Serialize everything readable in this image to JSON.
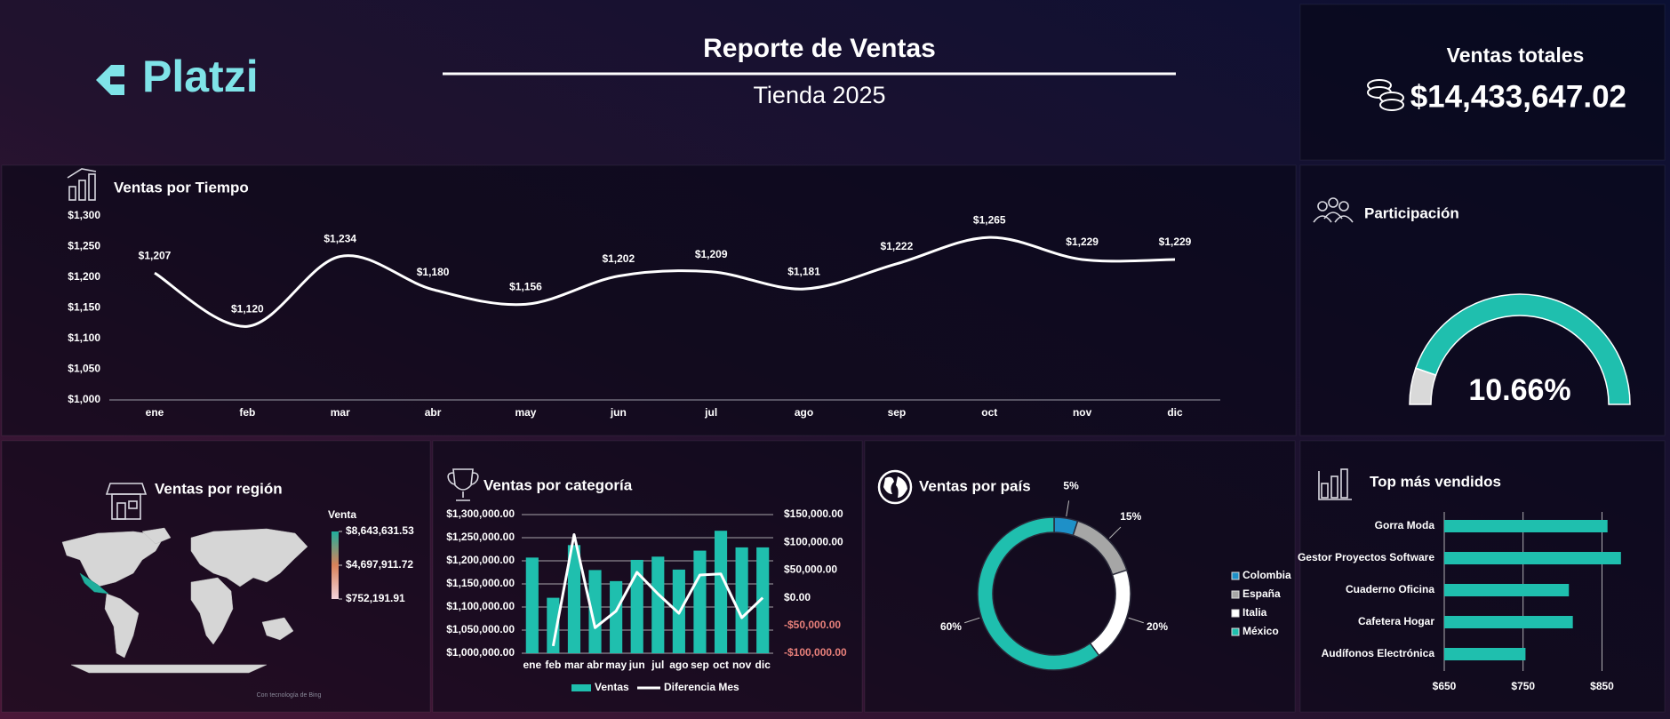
{
  "header": {
    "logo": "Platzi",
    "title": "Reporte de Ventas",
    "subtitle": "Tienda 2025"
  },
  "kpi": {
    "label": "Ventas totales",
    "value": "$14,433,647.02"
  },
  "chart_data": [
    {
      "type": "line",
      "title": "Ventas por Tiempo",
      "categories": [
        "ene",
        "feb",
        "mar",
        "abr",
        "may",
        "jun",
        "jul",
        "ago",
        "sep",
        "oct",
        "nov",
        "dic"
      ],
      "values": [
        1207,
        1120,
        1234,
        1180,
        1156,
        1202,
        1209,
        1181,
        1222,
        1265,
        1229,
        1229
      ],
      "value_labels": [
        "$1,207",
        "$1,120",
        "$1,234",
        "$1,180",
        "$1,156",
        "$1,202",
        "$1,209",
        "$1,181",
        "$1,222",
        "$1,265",
        "$1,229",
        "$1,229"
      ],
      "color": "#ffffff",
      "ylim": [
        1000,
        1300
      ],
      "yticks": [
        {
          "value": 1000,
          "label": "$1,000"
        },
        {
          "value": 1050,
          "label": "$1,050"
        },
        {
          "value": 1100,
          "label": "$1,100"
        },
        {
          "value": 1150,
          "label": "$1,150"
        },
        {
          "value": 1200,
          "label": "$1,200"
        },
        {
          "value": 1250,
          "label": "$1,250"
        },
        {
          "value": 1300,
          "label": "$1,300"
        }
      ]
    },
    {
      "type": "gauge",
      "title": "Participación",
      "values": [
        10.66
      ],
      "value_labels": [
        "10.66%"
      ],
      "ylim": [
        0,
        100
      ],
      "color": "#d9d9d9",
      "track_color": "#1fbfae"
    },
    {
      "type": "map",
      "title": "Ventas por región",
      "legend_title": "Venta",
      "colorbar": [
        {
          "value": 8643631.53,
          "label": "$8,643,631.53"
        },
        {
          "value": 4697911.72,
          "label": "$4,697,911.72"
        },
        {
          "value": 752191.91,
          "label": "$752,191.91"
        }
      ],
      "colors": [
        "#1fae9c",
        "#d9825a",
        "#f2d4dc"
      ],
      "footnote": "Con tecnología de Bing"
    },
    {
      "type": "combo",
      "title": "Ventas por categoría",
      "categories": [
        "ene",
        "feb",
        "mar",
        "abr",
        "may",
        "jun",
        "jul",
        "ago",
        "sep",
        "oct",
        "nov",
        "dic"
      ],
      "series": [
        {
          "name": "Ventas",
          "type": "bar",
          "color": "#1fbfae",
          "values": [
            1207000,
            1120000,
            1234000,
            1180000,
            1156000,
            1202000,
            1209000,
            1181000,
            1222000,
            1265000,
            1229000,
            1229000
          ]
        },
        {
          "name": "Diferencia Mes",
          "type": "line",
          "axis": "y2",
          "color": "#ffffff",
          "values": [
            null,
            -87000,
            114000,
            -54000,
            -24000,
            46000,
            7000,
            -28000,
            41000,
            43000,
            -36000,
            0
          ]
        }
      ],
      "ylim": [
        1000000,
        1300000
      ],
      "yticks": [
        {
          "value": 1000000,
          "label": "$1,000,000.00"
        },
        {
          "value": 1050000,
          "label": "$1,050,000.00"
        },
        {
          "value": 1100000,
          "label": "$1,100,000.00"
        },
        {
          "value": 1150000,
          "label": "$1,150,000.00"
        },
        {
          "value": 1200000,
          "label": "$1,200,000.00"
        },
        {
          "value": 1250000,
          "label": "$1,250,000.00"
        },
        {
          "value": 1300000,
          "label": "$1,300,000.00"
        }
      ],
      "y2lim": [
        -100000,
        150000
      ],
      "y2ticks": [
        {
          "value": -100000,
          "label": "-$100,000.00"
        },
        {
          "value": -50000,
          "label": "-$50,000.00"
        },
        {
          "value": 0,
          "label": "$0.00"
        },
        {
          "value": 50000,
          "label": "$50,000.00"
        },
        {
          "value": 100000,
          "label": "$100,000.00"
        },
        {
          "value": 150000,
          "label": "$150,000.00"
        }
      ],
      "negative_tick_color": "#e8807a",
      "grid": true
    },
    {
      "type": "donut",
      "title": "Ventas por país",
      "categories": [
        "Colombia",
        "España",
        "Italia",
        "México"
      ],
      "values": [
        5,
        15,
        20,
        60
      ],
      "value_labels": [
        "5%",
        "15%",
        "20%",
        "60%"
      ],
      "colors": [
        "#1e90c8",
        "#a6a6a6",
        "#ffffff",
        "#1fbfae"
      ]
    },
    {
      "type": "hbar",
      "title": "Top más vendidos",
      "categories": [
        "Gorra Moda",
        "Gestor Proyectos Software",
        "Cuaderno Oficina",
        "Cafetera Hogar",
        "Audífonos Electrónica"
      ],
      "values": [
        857,
        874,
        808,
        813,
        753
      ],
      "color": "#1fbfae",
      "xlim": [
        650,
        890
      ],
      "xticks": [
        {
          "value": 650,
          "label": "$650"
        },
        {
          "value": 750,
          "label": "$750"
        },
        {
          "value": 850,
          "label": "$850"
        }
      ],
      "grid": true
    }
  ]
}
